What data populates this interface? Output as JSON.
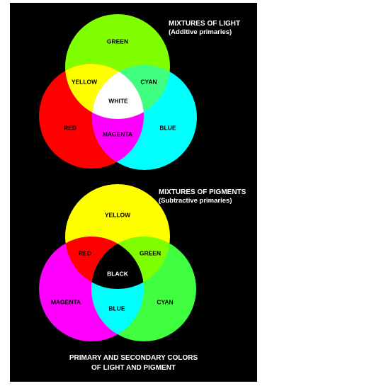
{
  "light": {
    "title": "MIXTURES OF LIGHT",
    "subtitle": "(Additive primaries)",
    "background": "#000000",
    "regions": {
      "green": {
        "label": "GREEN",
        "color": "#80ff00"
      },
      "red": {
        "label": "RED",
        "color": "#ff0000"
      },
      "blue": {
        "label": "BLUE",
        "color": "#00ffff"
      },
      "yellow": {
        "label": "YELLOW",
        "color": "#ffff00"
      },
      "cyan": {
        "label": "CYAN",
        "color": "#40ff80"
      },
      "magenta": {
        "label": "MAGENTA",
        "color": "#ff00ff"
      },
      "white": {
        "label": "WHITE",
        "color": "#ffffff"
      }
    }
  },
  "pigment": {
    "title": "MIXTURES OF PIGMENTS",
    "subtitle": "(Subtractive primaries)",
    "regions": {
      "yellow": {
        "label": "YELLOW",
        "color": "#ffff00"
      },
      "magenta": {
        "label": "MAGENTA",
        "color": "#ff00ff"
      },
      "cyan": {
        "label": "CYAN",
        "color": "#40ff40"
      },
      "red": {
        "label": "RED",
        "color": "#ff0000"
      },
      "green": {
        "label": "GREEN",
        "color": "#80ff00"
      },
      "blue": {
        "label": "BLUE",
        "color": "#00ffff"
      },
      "black": {
        "label": "BLACK",
        "color": "#000000"
      }
    }
  },
  "caption": {
    "line1": "PRIMARY AND SECONDARY COLORS",
    "line2": "OF LIGHT AND PIGMENT"
  }
}
